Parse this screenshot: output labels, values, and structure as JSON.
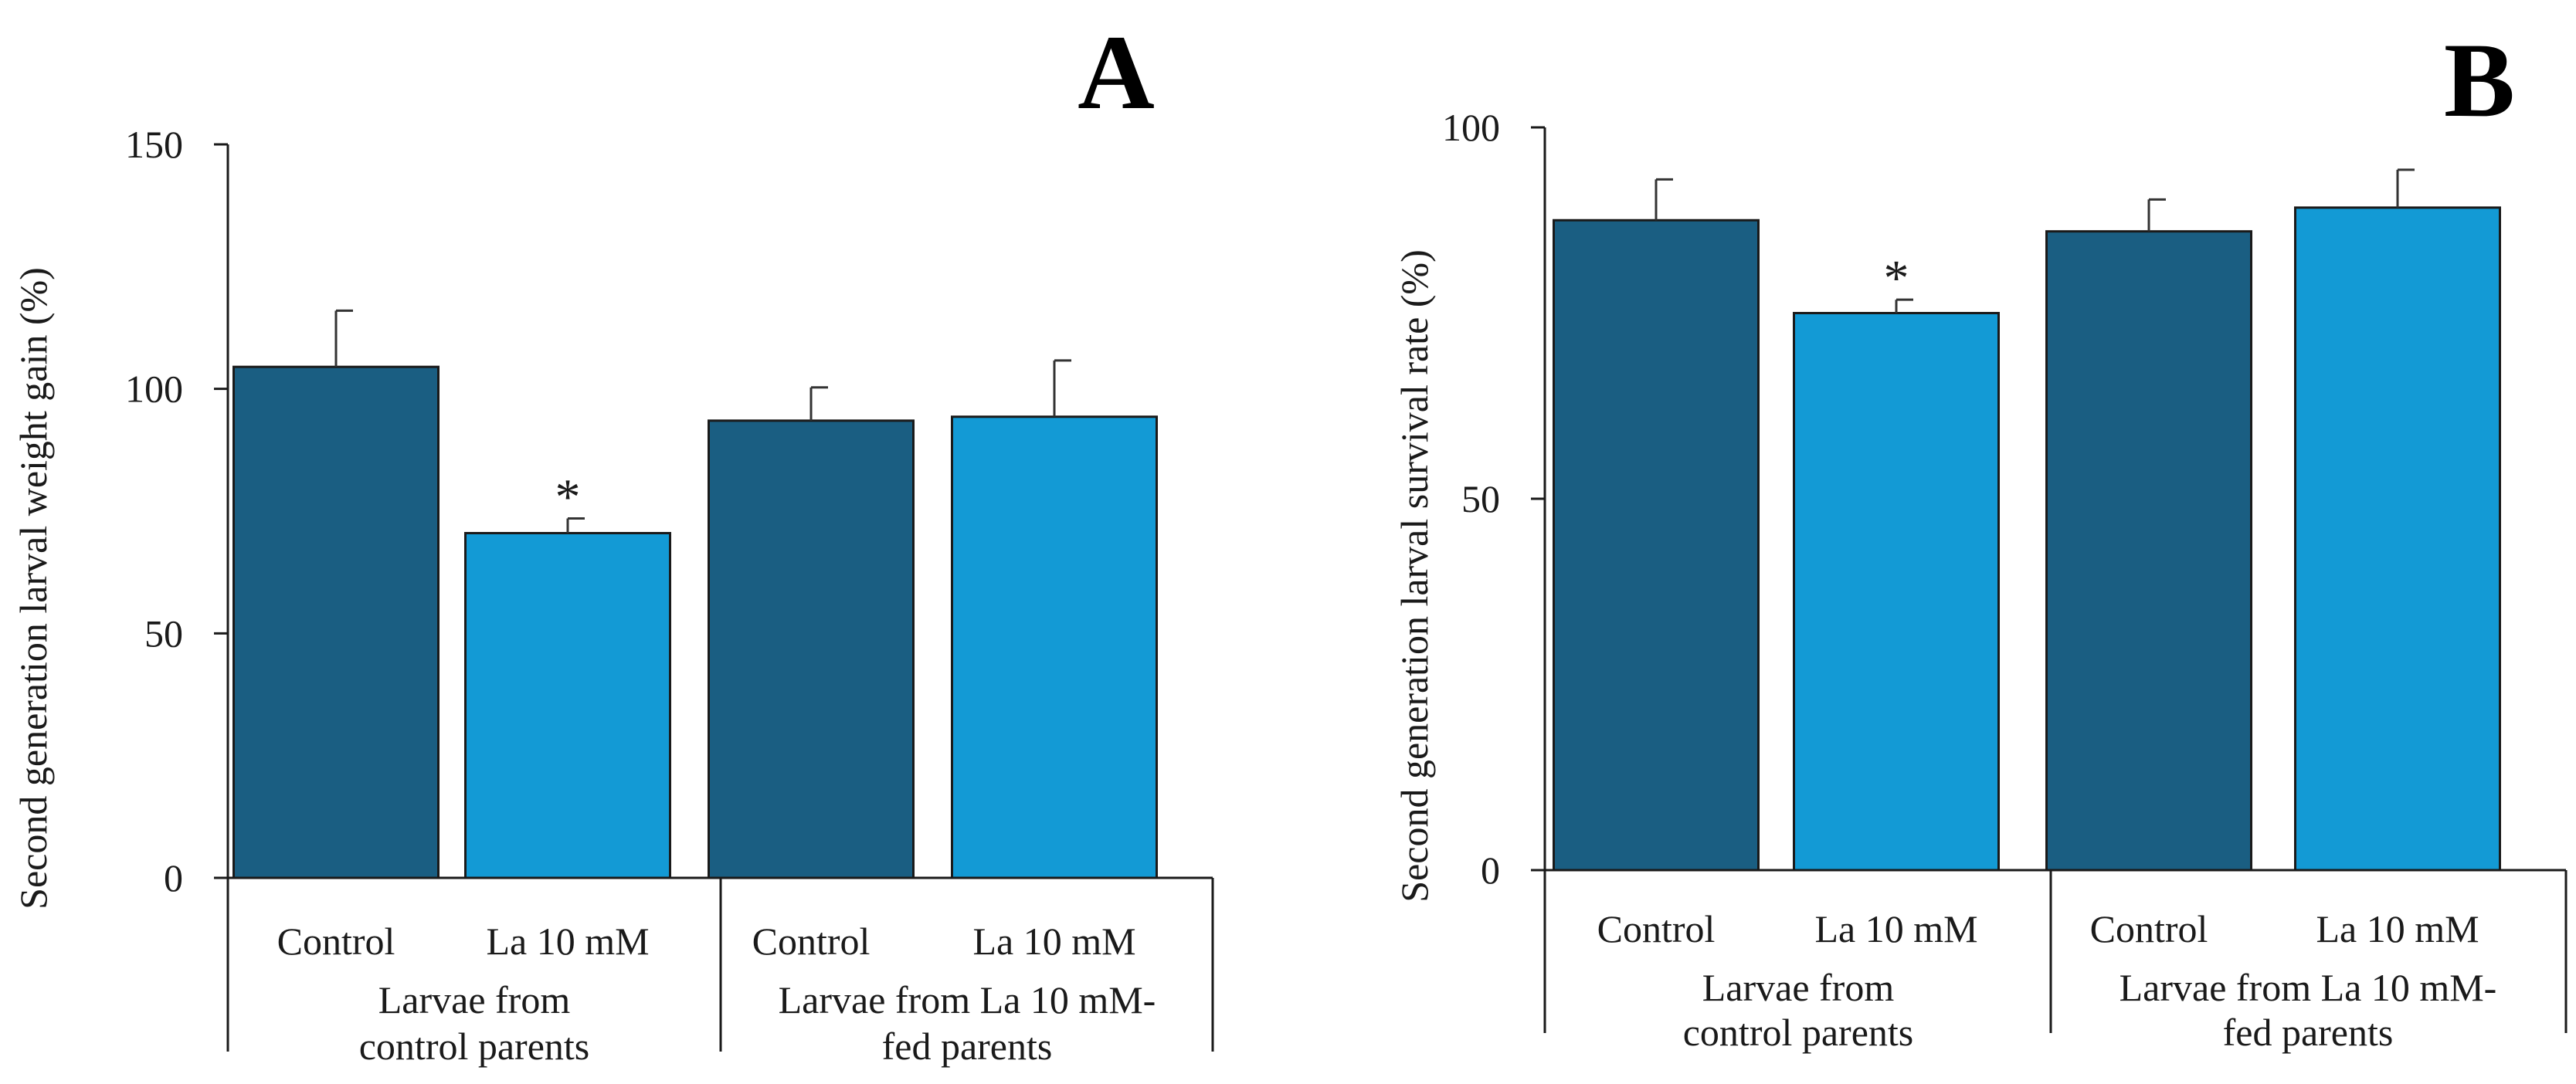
{
  "chart_data": [
    {
      "type": "bar",
      "panel_label": "A",
      "ylabel": "Second generation larval weight gain (%)",
      "ylim": [
        0,
        150
      ],
      "yticks": [
        0,
        50,
        100,
        150
      ],
      "categories": [
        "Control",
        "La 10 mM",
        "Control",
        "La 10 mM"
      ],
      "values": [
        104.5,
        70.5,
        93.5,
        94.3
      ],
      "errors": [
        11.5,
        3.0,
        6.8,
        11.5
      ],
      "significance": [
        "",
        "*",
        "",
        ""
      ],
      "groups": [
        {
          "line1": "Larvae from",
          "line2": "control parents"
        },
        {
          "line1": "Larvae from La 10 mM-",
          "line2": "fed parents"
        }
      ],
      "colors": [
        "#1a5e82",
        "#139ad5",
        "#1a5e82",
        "#139ad5"
      ]
    },
    {
      "type": "bar",
      "panel_label": "B",
      "ylabel": "Second generation larval survival rate (%)",
      "ylim": [
        0,
        100
      ],
      "yticks": [
        0,
        50,
        100
      ],
      "categories": [
        "Control",
        "La 10 mM",
        "Control",
        "La 10 mM"
      ],
      "values": [
        87.5,
        75.0,
        86.0,
        89.2
      ],
      "errors": [
        5.5,
        1.8,
        4.3,
        5.1
      ],
      "significance": [
        "",
        "*",
        "",
        ""
      ],
      "groups": [
        {
          "line1": "Larvae from",
          "line2": "control parents"
        },
        {
          "line1": "Larvae from La 10 mM-",
          "line2": "fed parents"
        }
      ],
      "colors": [
        "#1a5e82",
        "#139ad5",
        "#1a5e82",
        "#139ad5"
      ]
    }
  ]
}
